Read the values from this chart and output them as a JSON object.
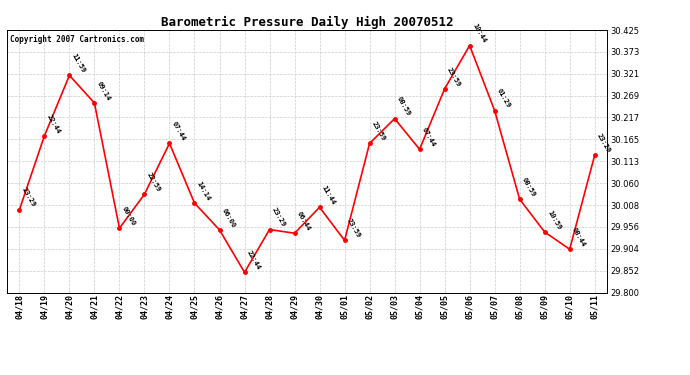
{
  "title": "Barometric Pressure Daily High 20070512",
  "copyright": "Copyright 2007 Cartronics.com",
  "line_color": "red",
  "marker_color": "red",
  "background_color": "#ffffff",
  "grid_color": "#cccccc",
  "text_color": "#000000",
  "ylim": [
    29.8,
    30.425
  ],
  "yticks": [
    29.8,
    29.852,
    29.904,
    29.956,
    30.008,
    30.06,
    30.113,
    30.165,
    30.217,
    30.269,
    30.321,
    30.373,
    30.425
  ],
  "points": [
    {
      "date": "04/18",
      "time": "23:29",
      "value": 29.997
    },
    {
      "date": "04/19",
      "time": "22:44",
      "value": 30.173
    },
    {
      "date": "04/20",
      "time": "11:59",
      "value": 30.317
    },
    {
      "date": "04/21",
      "time": "09:14",
      "value": 30.251
    },
    {
      "date": "04/22",
      "time": "00:00",
      "value": 29.953
    },
    {
      "date": "04/23",
      "time": "22:59",
      "value": 30.034
    },
    {
      "date": "04/24",
      "time": "07:44",
      "value": 30.155
    },
    {
      "date": "04/25",
      "time": "14:14",
      "value": 30.013
    },
    {
      "date": "04/26",
      "time": "06:00",
      "value": 29.949
    },
    {
      "date": "04/27",
      "time": "22:44",
      "value": 29.848
    },
    {
      "date": "04/28",
      "time": "23:29",
      "value": 29.95
    },
    {
      "date": "04/29",
      "time": "06:44",
      "value": 29.941
    },
    {
      "date": "04/30",
      "time": "11:44",
      "value": 30.003
    },
    {
      "date": "05/01",
      "time": "23:59",
      "value": 29.924
    },
    {
      "date": "05/02",
      "time": "23:59",
      "value": 30.155
    },
    {
      "date": "05/03",
      "time": "08:59",
      "value": 30.214
    },
    {
      "date": "05/04",
      "time": "07:44",
      "value": 30.141
    },
    {
      "date": "05/05",
      "time": "23:59",
      "value": 30.285
    },
    {
      "date": "05/06",
      "time": "10:44",
      "value": 30.388
    },
    {
      "date": "05/07",
      "time": "01:29",
      "value": 30.233
    },
    {
      "date": "05/08",
      "time": "08:59",
      "value": 30.022
    },
    {
      "date": "05/09",
      "time": "10:59",
      "value": 29.944
    },
    {
      "date": "05/10",
      "time": "08:44",
      "value": 29.903
    },
    {
      "date": "05/11",
      "time": "23:29",
      "value": 30.127
    }
  ]
}
